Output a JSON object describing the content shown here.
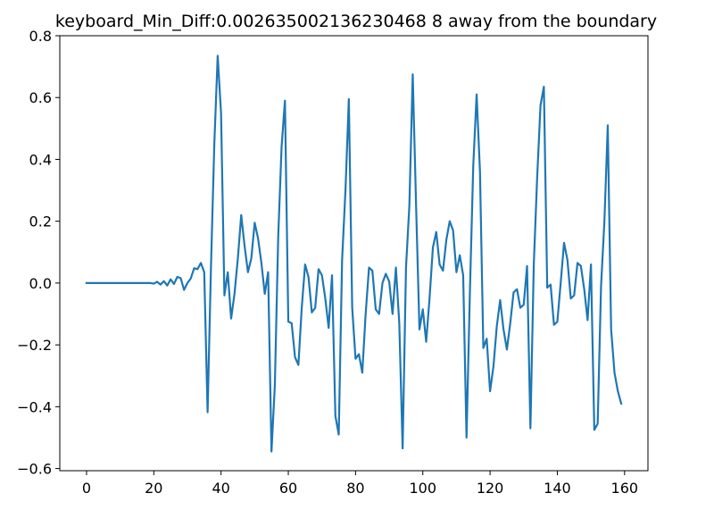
{
  "chart_data": {
    "type": "line",
    "title": "keyboard_Min_Diff:0.002635002136230468 8 away from the boundary",
    "xlabel": "",
    "ylabel": "",
    "xlim": [
      -7.95,
      166.95
    ],
    "ylim": [
      -0.607,
      0.8
    ],
    "xticks": [
      0,
      20,
      40,
      60,
      80,
      100,
      120,
      140,
      160
    ],
    "yticks": [
      -0.6,
      -0.4,
      -0.2,
      0.0,
      0.2,
      0.4,
      0.6,
      0.8
    ],
    "xtick_labels": [
      "0",
      "20",
      "40",
      "60",
      "80",
      "100",
      "120",
      "140",
      "160"
    ],
    "ytick_labels": [
      "−0.6",
      "−0.4",
      "−0.2",
      "0.0",
      "0.2",
      "0.4",
      "0.6",
      "0.8"
    ],
    "grid": false,
    "line_color": "#1f77b4",
    "series": [
      {
        "x": [
          0,
          1,
          2,
          3,
          4,
          5,
          6,
          7,
          8,
          9,
          10,
          11,
          12,
          13,
          14,
          15,
          16,
          17,
          18,
          19,
          20,
          21,
          22,
          23,
          24,
          25,
          26,
          27,
          28,
          29,
          30,
          31,
          32,
          33,
          34,
          35,
          36,
          37,
          38,
          39,
          40,
          41,
          42,
          43,
          44,
          45,
          46,
          47,
          48,
          49,
          50,
          51,
          52,
          53,
          54,
          55,
          56,
          57,
          58,
          59,
          60,
          61,
          62,
          63,
          64,
          65,
          66,
          67,
          68,
          69,
          70,
          71,
          72,
          73,
          74,
          75,
          76,
          77,
          78,
          79,
          80,
          81,
          82,
          83,
          84,
          85,
          86,
          87,
          88,
          89,
          90,
          91,
          92,
          93,
          94,
          95,
          96,
          97,
          98,
          99,
          100,
          101,
          102,
          103,
          104,
          105,
          106,
          107,
          108,
          109,
          110,
          111,
          112,
          113,
          114,
          115,
          116,
          117,
          118,
          119,
          120,
          121,
          122,
          123,
          124,
          125,
          126,
          127,
          128,
          129,
          130,
          131,
          132,
          133,
          134,
          135,
          136,
          137,
          138,
          139,
          140,
          141,
          142,
          143,
          144,
          145,
          146,
          147,
          148,
          149,
          150,
          151,
          152,
          153,
          154,
          155,
          156,
          157,
          158,
          159
        ],
        "y": [
          0.0,
          0.0,
          0.0,
          0.0,
          0.0,
          0.0,
          0.0,
          0.0,
          0.0,
          0.0,
          0.0,
          0.0,
          0.0,
          0.0,
          0.0,
          0.0,
          0.0,
          0.0,
          0.0,
          0.0,
          -0.002,
          0.004,
          -0.005,
          0.006,
          -0.008,
          0.012,
          -0.003,
          0.02,
          0.016,
          -0.022,
          0.0,
          0.015,
          0.048,
          0.045,
          0.065,
          0.035,
          -0.418,
          0.05,
          0.45,
          0.735,
          0.55,
          -0.04,
          0.035,
          -0.115,
          -0.035,
          0.08,
          0.22,
          0.12,
          0.035,
          0.08,
          0.195,
          0.145,
          0.065,
          -0.035,
          0.035,
          -0.545,
          -0.33,
          0.15,
          0.44,
          0.59,
          -0.125,
          -0.13,
          -0.24,
          -0.265,
          -0.08,
          0.06,
          0.02,
          -0.095,
          -0.08,
          0.045,
          0.025,
          -0.05,
          -0.145,
          0.025,
          -0.43,
          -0.49,
          0.075,
          0.3,
          0.595,
          -0.08,
          -0.245,
          -0.23,
          -0.29,
          -0.1,
          0.05,
          0.04,
          -0.085,
          -0.1,
          0.0,
          0.03,
          0.005,
          -0.1,
          0.05,
          -0.13,
          -0.535,
          0.05,
          0.25,
          0.675,
          0.25,
          -0.15,
          -0.085,
          -0.19,
          -0.05,
          0.115,
          0.165,
          0.06,
          0.04,
          0.14,
          0.2,
          0.17,
          0.035,
          0.09,
          0.025,
          -0.5,
          -0.03,
          0.38,
          0.61,
          0.36,
          -0.21,
          -0.18,
          -0.35,
          -0.27,
          -0.14,
          -0.055,
          -0.15,
          -0.215,
          -0.13,
          -0.03,
          -0.02,
          -0.08,
          -0.07,
          0.055,
          -0.47,
          0.06,
          0.34,
          0.575,
          0.635,
          -0.015,
          -0.005,
          -0.135,
          -0.125,
          0.0,
          0.13,
          0.075,
          -0.05,
          -0.04,
          0.065,
          0.055,
          -0.02,
          -0.12,
          0.06,
          -0.475,
          -0.455,
          -0.01,
          0.2,
          0.51,
          -0.15,
          -0.29,
          -0.35,
          -0.39
        ]
      }
    ]
  }
}
